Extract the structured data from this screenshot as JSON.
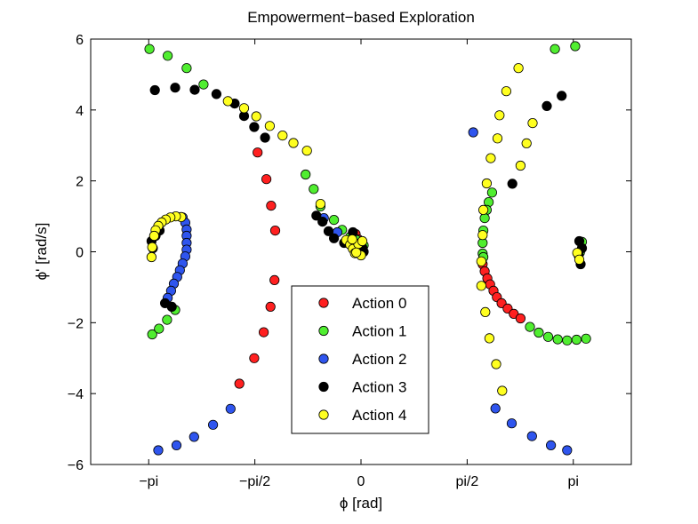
{
  "chart_data": {
    "type": "scatter",
    "title": "Empowerment−based Exploration",
    "xlabel": "ϕ [rad]",
    "ylabel": "ϕ' [rad/s]",
    "xlim": [
      -4.0,
      4.0
    ],
    "ylim": [
      -6,
      6
    ],
    "x_ticks": [
      {
        "value": -3.1416,
        "label": "−pi"
      },
      {
        "value": -1.5708,
        "label": "−pi/2"
      },
      {
        "value": 0,
        "label": "0"
      },
      {
        "value": 1.5708,
        "label": "pi/2"
      },
      {
        "value": 3.1416,
        "label": "pi"
      }
    ],
    "y_ticks": [
      {
        "value": -6,
        "label": "−6"
      },
      {
        "value": -4,
        "label": "−4"
      },
      {
        "value": -2,
        "label": "−2"
      },
      {
        "value": 0,
        "label": "0"
      },
      {
        "value": 2,
        "label": "2"
      },
      {
        "value": 4,
        "label": "4"
      },
      {
        "value": 6,
        "label": "6"
      }
    ],
    "legend_position": "bottom-center",
    "series": [
      {
        "name": "Action 0",
        "color": "#ff2020",
        "points": [
          [
            -1.53,
            2.8
          ],
          [
            -1.4,
            2.05
          ],
          [
            -1.33,
            1.3
          ],
          [
            -1.27,
            0.6
          ],
          [
            -1.28,
            -0.8
          ],
          [
            -1.34,
            -1.55
          ],
          [
            -1.44,
            -2.27
          ],
          [
            -1.58,
            -3.0
          ],
          [
            -1.8,
            -3.72
          ],
          [
            -3.0,
            0.7
          ],
          [
            1.8,
            -0.35
          ],
          [
            1.83,
            -0.55
          ],
          [
            1.87,
            -0.75
          ],
          [
            1.91,
            -0.92
          ],
          [
            1.96,
            -1.1
          ],
          [
            2.01,
            -1.28
          ],
          [
            2.08,
            -1.45
          ],
          [
            2.17,
            -1.6
          ],
          [
            2.26,
            -1.75
          ],
          [
            2.36,
            -1.88
          ],
          [
            -0.08,
            0.5
          ],
          [
            -0.04,
            0.35
          ]
        ]
      },
      {
        "name": "Action 1",
        "color": "#50ee30",
        "points": [
          [
            -3.13,
            5.72
          ],
          [
            -2.86,
            5.53
          ],
          [
            -2.58,
            5.18
          ],
          [
            -2.33,
            4.72
          ],
          [
            -0.82,
            2.18
          ],
          [
            -0.7,
            1.77
          ],
          [
            -0.6,
            1.28
          ],
          [
            -0.4,
            0.9
          ],
          [
            -0.28,
            0.62
          ],
          [
            -0.16,
            0.42
          ],
          [
            -0.06,
            0.33
          ],
          [
            0.04,
            0.18
          ],
          [
            -3.09,
            -2.33
          ],
          [
            -2.99,
            -2.17
          ],
          [
            -2.87,
            -1.92
          ],
          [
            -2.75,
            -1.64
          ],
          [
            1.94,
            1.67
          ],
          [
            1.89,
            1.4
          ],
          [
            1.86,
            1.18
          ],
          [
            1.83,
            0.95
          ],
          [
            1.81,
            0.6
          ],
          [
            1.8,
            0.25
          ],
          [
            1.8,
            -0.05
          ],
          [
            1.81,
            -0.15
          ],
          [
            2.5,
            -2.12
          ],
          [
            2.63,
            -2.28
          ],
          [
            2.77,
            -2.4
          ],
          [
            2.91,
            -2.47
          ],
          [
            3.05,
            -2.5
          ],
          [
            3.19,
            -2.48
          ],
          [
            3.33,
            -2.45
          ],
          [
            2.87,
            5.72
          ],
          [
            3.17,
            5.8
          ],
          [
            3.27,
            0.28
          ],
          [
            3.24,
            -0.02
          ]
        ]
      },
      {
        "name": "Action 2",
        "color": "#2f55ee",
        "points": [
          [
            -2.64,
            0.97
          ],
          [
            -2.6,
            0.82
          ],
          [
            -2.58,
            0.63
          ],
          [
            -2.58,
            0.45
          ],
          [
            -2.58,
            0.25
          ],
          [
            -2.58,
            0.06
          ],
          [
            -2.6,
            -0.13
          ],
          [
            -2.64,
            -0.33
          ],
          [
            -2.68,
            -0.52
          ],
          [
            -2.72,
            -0.71
          ],
          [
            -2.77,
            -0.9
          ],
          [
            -2.81,
            -1.1
          ],
          [
            -2.86,
            -1.3
          ],
          [
            -3.0,
            -5.6
          ],
          [
            -2.73,
            -5.46
          ],
          [
            -2.47,
            -5.22
          ],
          [
            -2.19,
            -4.88
          ],
          [
            -1.93,
            -4.43
          ],
          [
            1.66,
            3.37
          ],
          [
            1.99,
            -4.42
          ],
          [
            2.23,
            -4.84
          ],
          [
            2.53,
            -5.2
          ],
          [
            2.81,
            -5.46
          ],
          [
            3.05,
            -5.6
          ],
          [
            -0.55,
            0.95
          ],
          [
            -0.35,
            0.55
          ]
        ]
      },
      {
        "name": "Action 3",
        "color": "#000000",
        "points": [
          [
            -3.05,
            4.56
          ],
          [
            -2.75,
            4.63
          ],
          [
            -2.46,
            4.57
          ],
          [
            -2.14,
            4.45
          ],
          [
            -1.87,
            4.18
          ],
          [
            -1.73,
            3.83
          ],
          [
            -1.58,
            3.52
          ],
          [
            -1.42,
            3.22
          ],
          [
            -0.66,
            1.02
          ],
          [
            -0.57,
            0.85
          ],
          [
            -0.48,
            0.58
          ],
          [
            -0.4,
            0.38
          ],
          [
            -0.25,
            0.25
          ],
          [
            -0.12,
            0.55
          ],
          [
            0.04,
            0.0
          ],
          [
            0.02,
            0.12
          ],
          [
            -0.05,
            0.1
          ],
          [
            -2.9,
            -1.45
          ],
          [
            -2.8,
            -1.55
          ],
          [
            -3.1,
            0.3
          ],
          [
            -3.08,
            0.1
          ],
          [
            -3.04,
            0.45
          ],
          [
            -2.98,
            0.6
          ],
          [
            2.24,
            1.92
          ],
          [
            2.75,
            4.11
          ],
          [
            2.97,
            4.4
          ],
          [
            3.23,
            0.3
          ],
          [
            3.27,
            0.1
          ],
          [
            3.25,
            -0.35
          ],
          [
            3.22,
            -0.1
          ]
        ]
      },
      {
        "name": "Action 4",
        "color": "#ffff20",
        "points": [
          [
            -1.97,
            4.25
          ],
          [
            -1.73,
            4.05
          ],
          [
            -1.55,
            3.82
          ],
          [
            -1.35,
            3.55
          ],
          [
            -1.16,
            3.28
          ],
          [
            -1.0,
            3.07
          ],
          [
            -0.8,
            2.85
          ],
          [
            -0.6,
            1.35
          ],
          [
            -0.22,
            0.33
          ],
          [
            -0.16,
            0.2
          ],
          [
            -0.12,
            0.08
          ],
          [
            -0.09,
            -0.04
          ],
          [
            0.0,
            -0.1
          ],
          [
            -0.04,
            0.22
          ],
          [
            0.02,
            0.3
          ],
          [
            -2.66,
            0.98
          ],
          [
            -2.74,
            1.0
          ],
          [
            -2.82,
            0.97
          ],
          [
            -2.89,
            0.91
          ],
          [
            -2.95,
            0.83
          ],
          [
            -3.0,
            0.73
          ],
          [
            -3.04,
            0.61
          ],
          [
            -3.06,
            0.45
          ],
          [
            -3.09,
            0.13
          ],
          [
            -3.1,
            -0.15
          ],
          [
            1.78,
            -0.27
          ],
          [
            1.78,
            -0.96
          ],
          [
            1.84,
            -1.7
          ],
          [
            1.9,
            -2.44
          ],
          [
            2.0,
            -3.17
          ],
          [
            2.09,
            -3.92
          ],
          [
            1.8,
            0.47
          ],
          [
            1.81,
            1.18
          ],
          [
            1.86,
            1.93
          ],
          [
            1.92,
            2.64
          ],
          [
            2.02,
            3.2
          ],
          [
            2.05,
            3.85
          ],
          [
            2.15,
            4.53
          ],
          [
            2.33,
            5.18
          ],
          [
            2.36,
            2.43
          ],
          [
            2.45,
            3.06
          ],
          [
            2.54,
            3.63
          ],
          [
            3.2,
            -0.03
          ],
          [
            3.23,
            -0.22
          ],
          [
            -0.13,
            0.35
          ],
          [
            -0.07,
            -0.02
          ]
        ]
      }
    ],
    "legend": [
      "Action 0",
      "Action 1",
      "Action 2",
      "Action 3",
      "Action 4"
    ]
  }
}
